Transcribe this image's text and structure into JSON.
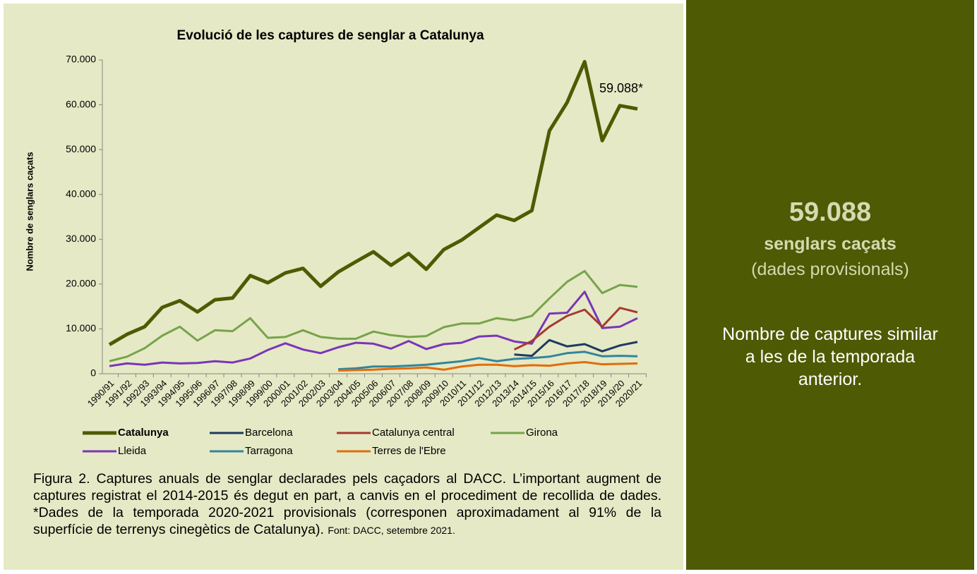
{
  "chart_data": {
    "type": "line",
    "title": "Evolució de les captures de senglar a Catalunya",
    "y_label": "Nombre de senglars caçats",
    "annotation": "59.088*",
    "categories": [
      "1990/91",
      "1991/92",
      "1992/93",
      "1993/94",
      "1994/95",
      "1995/96",
      "1996/97",
      "1997/98",
      "1998/99",
      "1999/00",
      "2000/01",
      "2001/02",
      "2002/03",
      "2003/04",
      "2004/05",
      "2005/06",
      "2006/07",
      "2007/08",
      "2008/09",
      "2009/10",
      "2010/11",
      "2011/12",
      "2012/13",
      "2013/14",
      "2014/15",
      "2015/16",
      "2016/17",
      "2017/18",
      "2018/19",
      "2019/20",
      "2020/21"
    ],
    "ylim": [
      0,
      70000
    ],
    "yticks": [
      0,
      {
        "value": 10000,
        "label": "10.000"
      },
      {
        "value": 20000,
        "label": "20.000"
      },
      {
        "value": 30000,
        "label": "30.000"
      },
      {
        "value": 40000,
        "label": "40.000"
      },
      {
        "value": 50000,
        "label": "50.000"
      },
      {
        "value": 60000,
        "label": "60.000"
      },
      {
        "value": 70000,
        "label": "70.000"
      }
    ],
    "grid": false,
    "series": [
      {
        "name": "Catalunya",
        "color": "#4f5a00",
        "values": [
          6500,
          8800,
          10500,
          14800,
          16300,
          13800,
          16500,
          16900,
          21900,
          20300,
          22500,
          23500,
          19500,
          22700,
          25000,
          27200,
          24200,
          26800,
          23300,
          27700,
          29800,
          32600,
          35400,
          34200,
          36400,
          54200,
          60500,
          69600,
          52000,
          59800,
          59088
        ]
      },
      {
        "name": "Barcelona",
        "color": "#1f3a5f",
        "values": [
          null,
          null,
          null,
          null,
          null,
          null,
          null,
          null,
          null,
          null,
          null,
          null,
          null,
          null,
          null,
          null,
          null,
          null,
          null,
          null,
          null,
          null,
          null,
          4300,
          4000,
          7500,
          6100,
          6600,
          5000,
          6300,
          7100
        ]
      },
      {
        "name": "Catalunya central",
        "color": "#a33b2f",
        "values": [
          null,
          null,
          null,
          null,
          null,
          null,
          null,
          null,
          null,
          null,
          null,
          null,
          null,
          null,
          null,
          null,
          null,
          null,
          null,
          null,
          null,
          null,
          null,
          5400,
          7300,
          10500,
          12900,
          14300,
          10500,
          14700,
          13700
        ]
      },
      {
        "name": "Girona",
        "color": "#77a34b",
        "values": [
          2800,
          3800,
          5700,
          8500,
          10500,
          7400,
          9700,
          9500,
          12400,
          8000,
          8200,
          9700,
          8200,
          7800,
          7800,
          9400,
          8600,
          8200,
          8400,
          10400,
          11200,
          11200,
          12400,
          11900,
          12900,
          16800,
          20500,
          22900,
          18000,
          19800,
          19400
        ]
      },
      {
        "name": "Lleida",
        "color": "#7a35b8",
        "values": [
          1700,
          2300,
          2000,
          2500,
          2300,
          2400,
          2800,
          2500,
          3400,
          5300,
          6800,
          5400,
          4600,
          5900,
          6900,
          6700,
          5600,
          7300,
          5500,
          6600,
          6900,
          8300,
          8500,
          7200,
          6700,
          13400,
          13600,
          18300,
          10200,
          10500,
          12400
        ]
      },
      {
        "name": "Tarragona",
        "color": "#31859c",
        "values": [
          null,
          null,
          null,
          null,
          null,
          null,
          null,
          null,
          null,
          null,
          null,
          null,
          null,
          1000,
          1200,
          1600,
          1600,
          1800,
          2000,
          2400,
          2800,
          3500,
          2800,
          3300,
          3500,
          3800,
          4600,
          4900,
          3900,
          4000,
          3900
        ]
      },
      {
        "name": "Terres de l'Ebre",
        "color": "#e36c0a",
        "values": [
          null,
          null,
          null,
          null,
          null,
          null,
          null,
          null,
          null,
          null,
          null,
          null,
          null,
          700,
          800,
          900,
          1100,
          1200,
          1400,
          900,
          1600,
          2000,
          2000,
          1700,
          1900,
          1800,
          2300,
          2600,
          2100,
          2200,
          2300
        ]
      }
    ]
  },
  "caption": {
    "text": "Figura 2. Captures anuals de senglar declarades pels caçadors al DACC. L’important augment de captures registrat el 2014-2015 és degut en part, a canvis en el procediment de recollida de dades. *Dades de la temporada 2020-2021 provisionals (corresponen aproximadament al 91% de la superfície de terrenys cinegètics de Catalunya).",
    "source": "Font: DACC, setembre 2021."
  },
  "panel": {
    "number": "59.088",
    "subtitle": "senglars caçats",
    "note": "(dades provisionals)",
    "message": "Nombre de captures similar a les de la temporada anterior."
  }
}
